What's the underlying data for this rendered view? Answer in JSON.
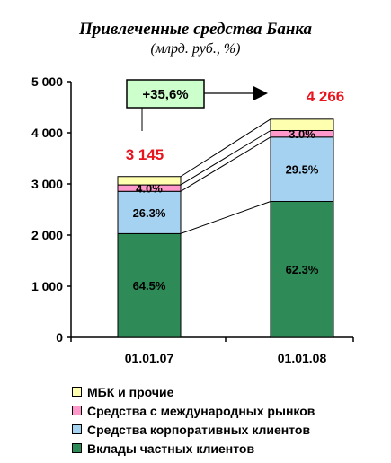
{
  "chart_data": {
    "type": "bar",
    "stacked": true,
    "title": "Привлеченные средства Банка",
    "subtitle": "(млрд. руб., %)",
    "categories": [
      "01.01.07",
      "01.01.08"
    ],
    "totals": [
      3145,
      4266
    ],
    "total_labels": [
      "3 145",
      "4 266"
    ],
    "growth_label": "+35,6%",
    "ylim": [
      0,
      5000
    ],
    "yticks": [
      0,
      1000,
      2000,
      3000,
      4000,
      5000
    ],
    "ytick_labels": [
      "0",
      "1 000",
      "2 000",
      "3 000",
      "4 000",
      "5 000"
    ],
    "legend_position": "bottom",
    "series": [
      {
        "name": "Вклады частных клиентов",
        "color": "#2e8b57",
        "values": [
          2028,
          2658
        ],
        "labels": [
          "64.5%",
          "62.3%"
        ]
      },
      {
        "name": "Средства корпоративных клиентов",
        "color": "#a6d2f2",
        "values": [
          827,
          1258
        ],
        "labels": [
          "26.3%",
          "29.5%"
        ]
      },
      {
        "name": "Средства с международных рынков",
        "color": "#ff99cc",
        "values": [
          126,
          128
        ],
        "labels": [
          "4.0%",
          "3.0%"
        ]
      },
      {
        "name": "МБК и прочие",
        "color": "#ffffb0",
        "values": [
          164,
          222
        ],
        "labels": [
          "",
          ""
        ]
      }
    ]
  }
}
